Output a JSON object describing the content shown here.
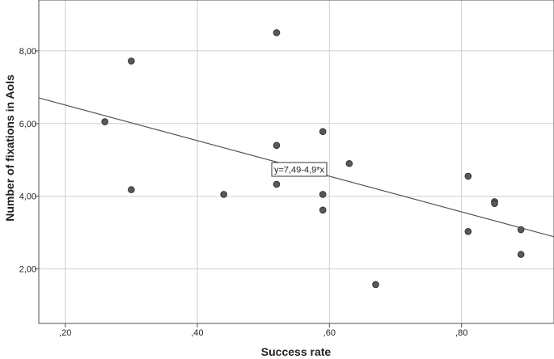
{
  "chart_data": {
    "type": "scatter",
    "xlabel": "Success rate",
    "ylabel": "Number of fixations in AoIs",
    "xlim": [
      0.16,
      0.94
    ],
    "ylim": [
      0.5,
      9.4
    ],
    "x_ticks": [
      0.2,
      0.4,
      0.6,
      0.8
    ],
    "x_tick_labels": [
      ",20",
      ",40",
      ",60",
      ",80"
    ],
    "y_ticks": [
      2,
      4,
      6,
      8
    ],
    "y_tick_labels": [
      "2,00",
      "4,00",
      "6,00",
      "8,00"
    ],
    "grid": true,
    "points": [
      {
        "x": 0.26,
        "y": 6.05
      },
      {
        "x": 0.3,
        "y": 7.72
      },
      {
        "x": 0.3,
        "y": 4.18
      },
      {
        "x": 0.44,
        "y": 4.05
      },
      {
        "x": 0.52,
        "y": 8.5
      },
      {
        "x": 0.52,
        "y": 5.4
      },
      {
        "x": 0.52,
        "y": 4.33
      },
      {
        "x": 0.59,
        "y": 5.78
      },
      {
        "x": 0.59,
        "y": 4.05
      },
      {
        "x": 0.59,
        "y": 3.62
      },
      {
        "x": 0.63,
        "y": 4.9
      },
      {
        "x": 0.67,
        "y": 1.57
      },
      {
        "x": 0.81,
        "y": 4.55
      },
      {
        "x": 0.81,
        "y": 3.03
      },
      {
        "x": 0.85,
        "y": 3.85
      },
      {
        "x": 0.85,
        "y": 3.8
      },
      {
        "x": 0.89,
        "y": 3.08
      },
      {
        "x": 0.89,
        "y": 2.4
      }
    ],
    "fit_line": {
      "intercept": 7.49,
      "slope": -4.9
    },
    "fit_label": "y=7,49-4,9*x"
  }
}
